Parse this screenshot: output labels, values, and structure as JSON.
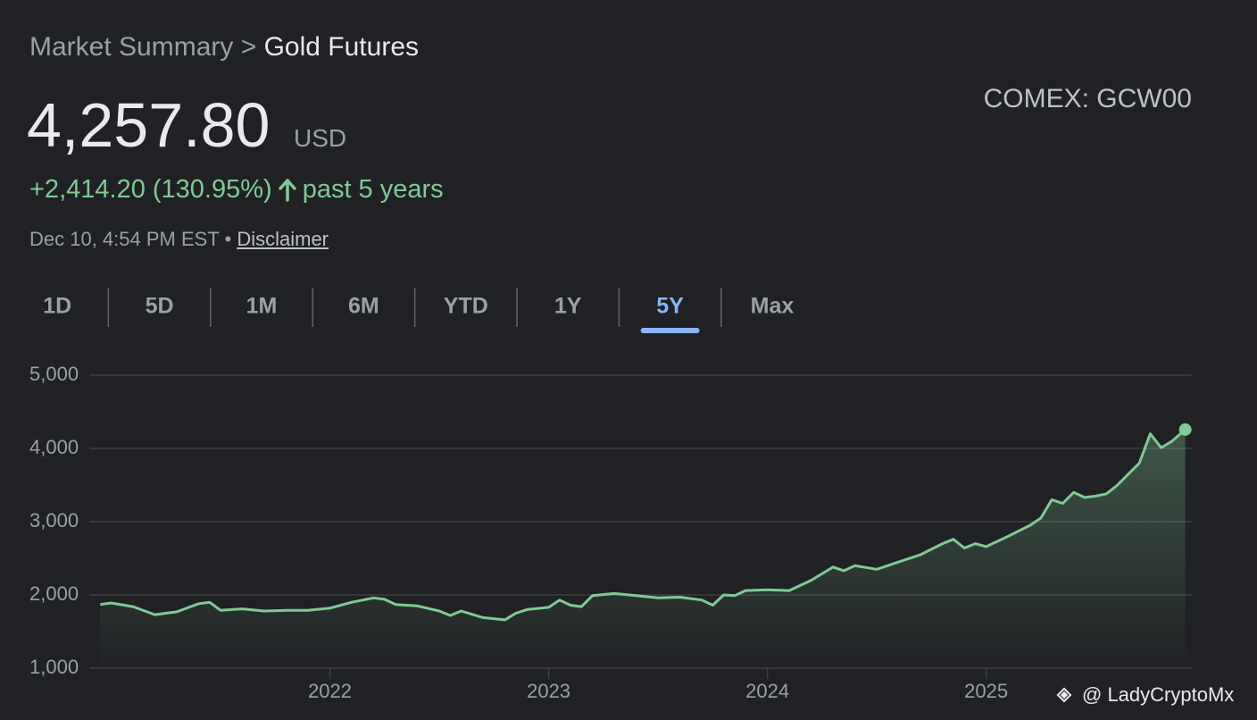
{
  "header": {
    "breadcrumb_parent": "Market Summary",
    "breadcrumb_separator": ">",
    "breadcrumb_current": "Gold Futures",
    "price": "4,257.80",
    "currency": "USD",
    "ticker": "COMEX: GCW00",
    "change": "+2,414.20 (130.95%)",
    "period": "past 5 years",
    "timestamp": "Dec 10, 4:54 PM EST",
    "dot": "•",
    "disclaimer": "Disclaimer"
  },
  "tabs": [
    "1D",
    "5D",
    "1M",
    "6M",
    "YTD",
    "1Y",
    "5Y",
    "Max"
  ],
  "active_tab": 6,
  "watermark": "@ LadyCryptoMx",
  "chart_data": {
    "type": "line",
    "color": "#81c995",
    "grid": true,
    "x": [
      2020.95,
      2021.0,
      2021.1,
      2021.2,
      2021.3,
      2021.4,
      2021.45,
      2021.5,
      2021.6,
      2021.7,
      2021.8,
      2021.9,
      2022.0,
      2022.1,
      2022.2,
      2022.25,
      2022.3,
      2022.4,
      2022.5,
      2022.55,
      2022.6,
      2022.7,
      2022.8,
      2022.85,
      2022.9,
      2023.0,
      2023.05,
      2023.1,
      2023.15,
      2023.2,
      2023.3,
      2023.4,
      2023.5,
      2023.6,
      2023.7,
      2023.75,
      2023.8,
      2023.85,
      2023.9,
      2024.0,
      2024.1,
      2024.2,
      2024.3,
      2024.35,
      2024.4,
      2024.5,
      2024.6,
      2024.7,
      2024.8,
      2024.85,
      2024.9,
      2024.95,
      2025.0,
      2025.1,
      2025.2,
      2025.25,
      2025.3,
      2025.35,
      2025.4,
      2025.45,
      2025.5,
      2025.55,
      2025.6,
      2025.65,
      2025.7,
      2025.75,
      2025.8,
      2025.85,
      2025.91
    ],
    "values": [
      1870,
      1890,
      1840,
      1730,
      1770,
      1880,
      1900,
      1790,
      1810,
      1780,
      1790,
      1790,
      1820,
      1900,
      1960,
      1940,
      1870,
      1850,
      1780,
      1720,
      1780,
      1690,
      1660,
      1750,
      1800,
      1830,
      1930,
      1860,
      1840,
      1990,
      2020,
      1990,
      1960,
      1970,
      1930,
      1860,
      2000,
      1990,
      2060,
      2070,
      2060,
      2200,
      2380,
      2330,
      2400,
      2350,
      2450,
      2550,
      2700,
      2760,
      2640,
      2700,
      2660,
      2800,
      2950,
      3050,
      3300,
      3250,
      3400,
      3330,
      3350,
      3380,
      3500,
      3650,
      3800,
      4200,
      4010,
      4100,
      4257.8
    ],
    "xlim": [
      2020.9,
      2025.94
    ],
    "xticks": [
      2022,
      2023,
      2024,
      2025
    ],
    "ylim": [
      1000,
      5000
    ],
    "yticks": [
      {
        "value": 1000,
        "label": "1,000"
      },
      {
        "value": 2000,
        "label": "2,000"
      },
      {
        "value": 3000,
        "label": "3,000"
      },
      {
        "value": 4000,
        "label": "4,000"
      },
      {
        "value": 5000,
        "label": "5,000"
      }
    ]
  }
}
